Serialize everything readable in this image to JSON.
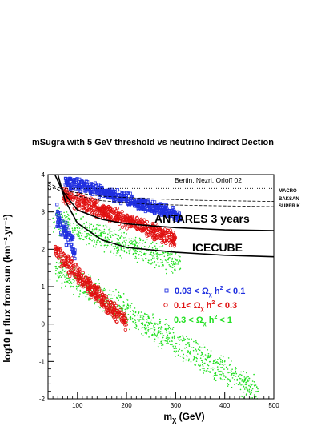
{
  "chart_data": {
    "type": "scatter",
    "title": "mSugra with 5 GeV threshold vs neutrino Indirect Dection",
    "credit": "Bertin, Nezri, Orloff 02",
    "xlabel": "m",
    "xlabel_sub": "χ",
    "xlabel_unit": " (GeV)",
    "ylabel": "log10 μ flux from sun (km⁻².yr⁻¹)",
    "xlim": [
      40,
      500
    ],
    "ylim": [
      -2,
      4
    ],
    "x_ticks": [
      "100",
      "200",
      "300",
      "400",
      "500"
    ],
    "y_ticks": [
      "-2",
      "-1",
      "0",
      "1",
      "2",
      "3",
      "4"
    ],
    "grid": false,
    "legend_position": "center-right",
    "limits": [
      {
        "name": "MACRO",
        "style": "dotted",
        "points": [
          [
            40,
            3.63
          ],
          [
            500,
            3.63
          ]
        ]
      },
      {
        "name": "BAKSAN",
        "style": "dashed",
        "points": [
          [
            40,
            3.77
          ],
          [
            80,
            3.55
          ],
          [
            150,
            3.42
          ],
          [
            250,
            3.35
          ],
          [
            350,
            3.31
          ],
          [
            500,
            3.28
          ]
        ]
      },
      {
        "name": "SUPER K",
        "style": "dashed",
        "points": [
          [
            40,
            3.72
          ],
          [
            80,
            3.48
          ],
          [
            150,
            3.3
          ],
          [
            250,
            3.2
          ],
          [
            350,
            3.17
          ],
          [
            500,
            3.14
          ]
        ]
      },
      {
        "name": "ANTARES 3 years",
        "style": "solid",
        "points": [
          [
            54,
            4.0
          ],
          [
            70,
            3.55
          ],
          [
            100,
            3.05
          ],
          [
            150,
            2.8
          ],
          [
            200,
            2.68
          ],
          [
            300,
            2.58
          ],
          [
            400,
            2.52
          ],
          [
            500,
            2.5
          ]
        ]
      },
      {
        "name": "ICECUBE",
        "style": "solid",
        "points": [
          [
            60,
            4.0
          ],
          [
            75,
            3.3
          ],
          [
            100,
            2.7
          ],
          [
            150,
            2.25
          ],
          [
            200,
            2.05
          ],
          [
            300,
            1.92
          ],
          [
            400,
            1.84
          ],
          [
            500,
            1.8
          ]
        ]
      }
    ],
    "series": [
      {
        "name": "0.03 <  Ω χ h² < 0.1",
        "legend_parts": [
          "0.03 <  Ω",
          "χ",
          " h",
          "2",
          " < 0.1"
        ],
        "color": "#1f2fe0",
        "marker": "square",
        "bands": [
          [
            75,
            310,
            3.85,
            2.9,
            0.2
          ],
          [
            58,
            95,
            2.9,
            2.0,
            0.35
          ]
        ],
        "scatter": 0.3
      },
      {
        "name": "0.1< Ω χ h² < 0.3",
        "legend_parts": [
          "0.1< Ω",
          "χ",
          " h",
          "2",
          " < 0.3"
        ],
        "color": "#e01010",
        "marker": "circle",
        "bands": [
          [
            70,
            300,
            3.45,
            2.25,
            0.25
          ],
          [
            55,
            200,
            1.95,
            0.0,
            0.3
          ]
        ],
        "scatter": 0.25
      },
      {
        "name": "0.3 < Ω χ h² < 1",
        "legend_parts": [
          "0.3 < Ω",
          "χ",
          " h",
          "2",
          " < 1"
        ],
        "color": "#22e022",
        "marker": "dot",
        "bands": [
          [
            50,
            310,
            2.8,
            1.6,
            0.4
          ],
          [
            55,
            470,
            1.5,
            -1.85,
            0.45
          ]
        ],
        "scatter": 0.3
      }
    ]
  }
}
